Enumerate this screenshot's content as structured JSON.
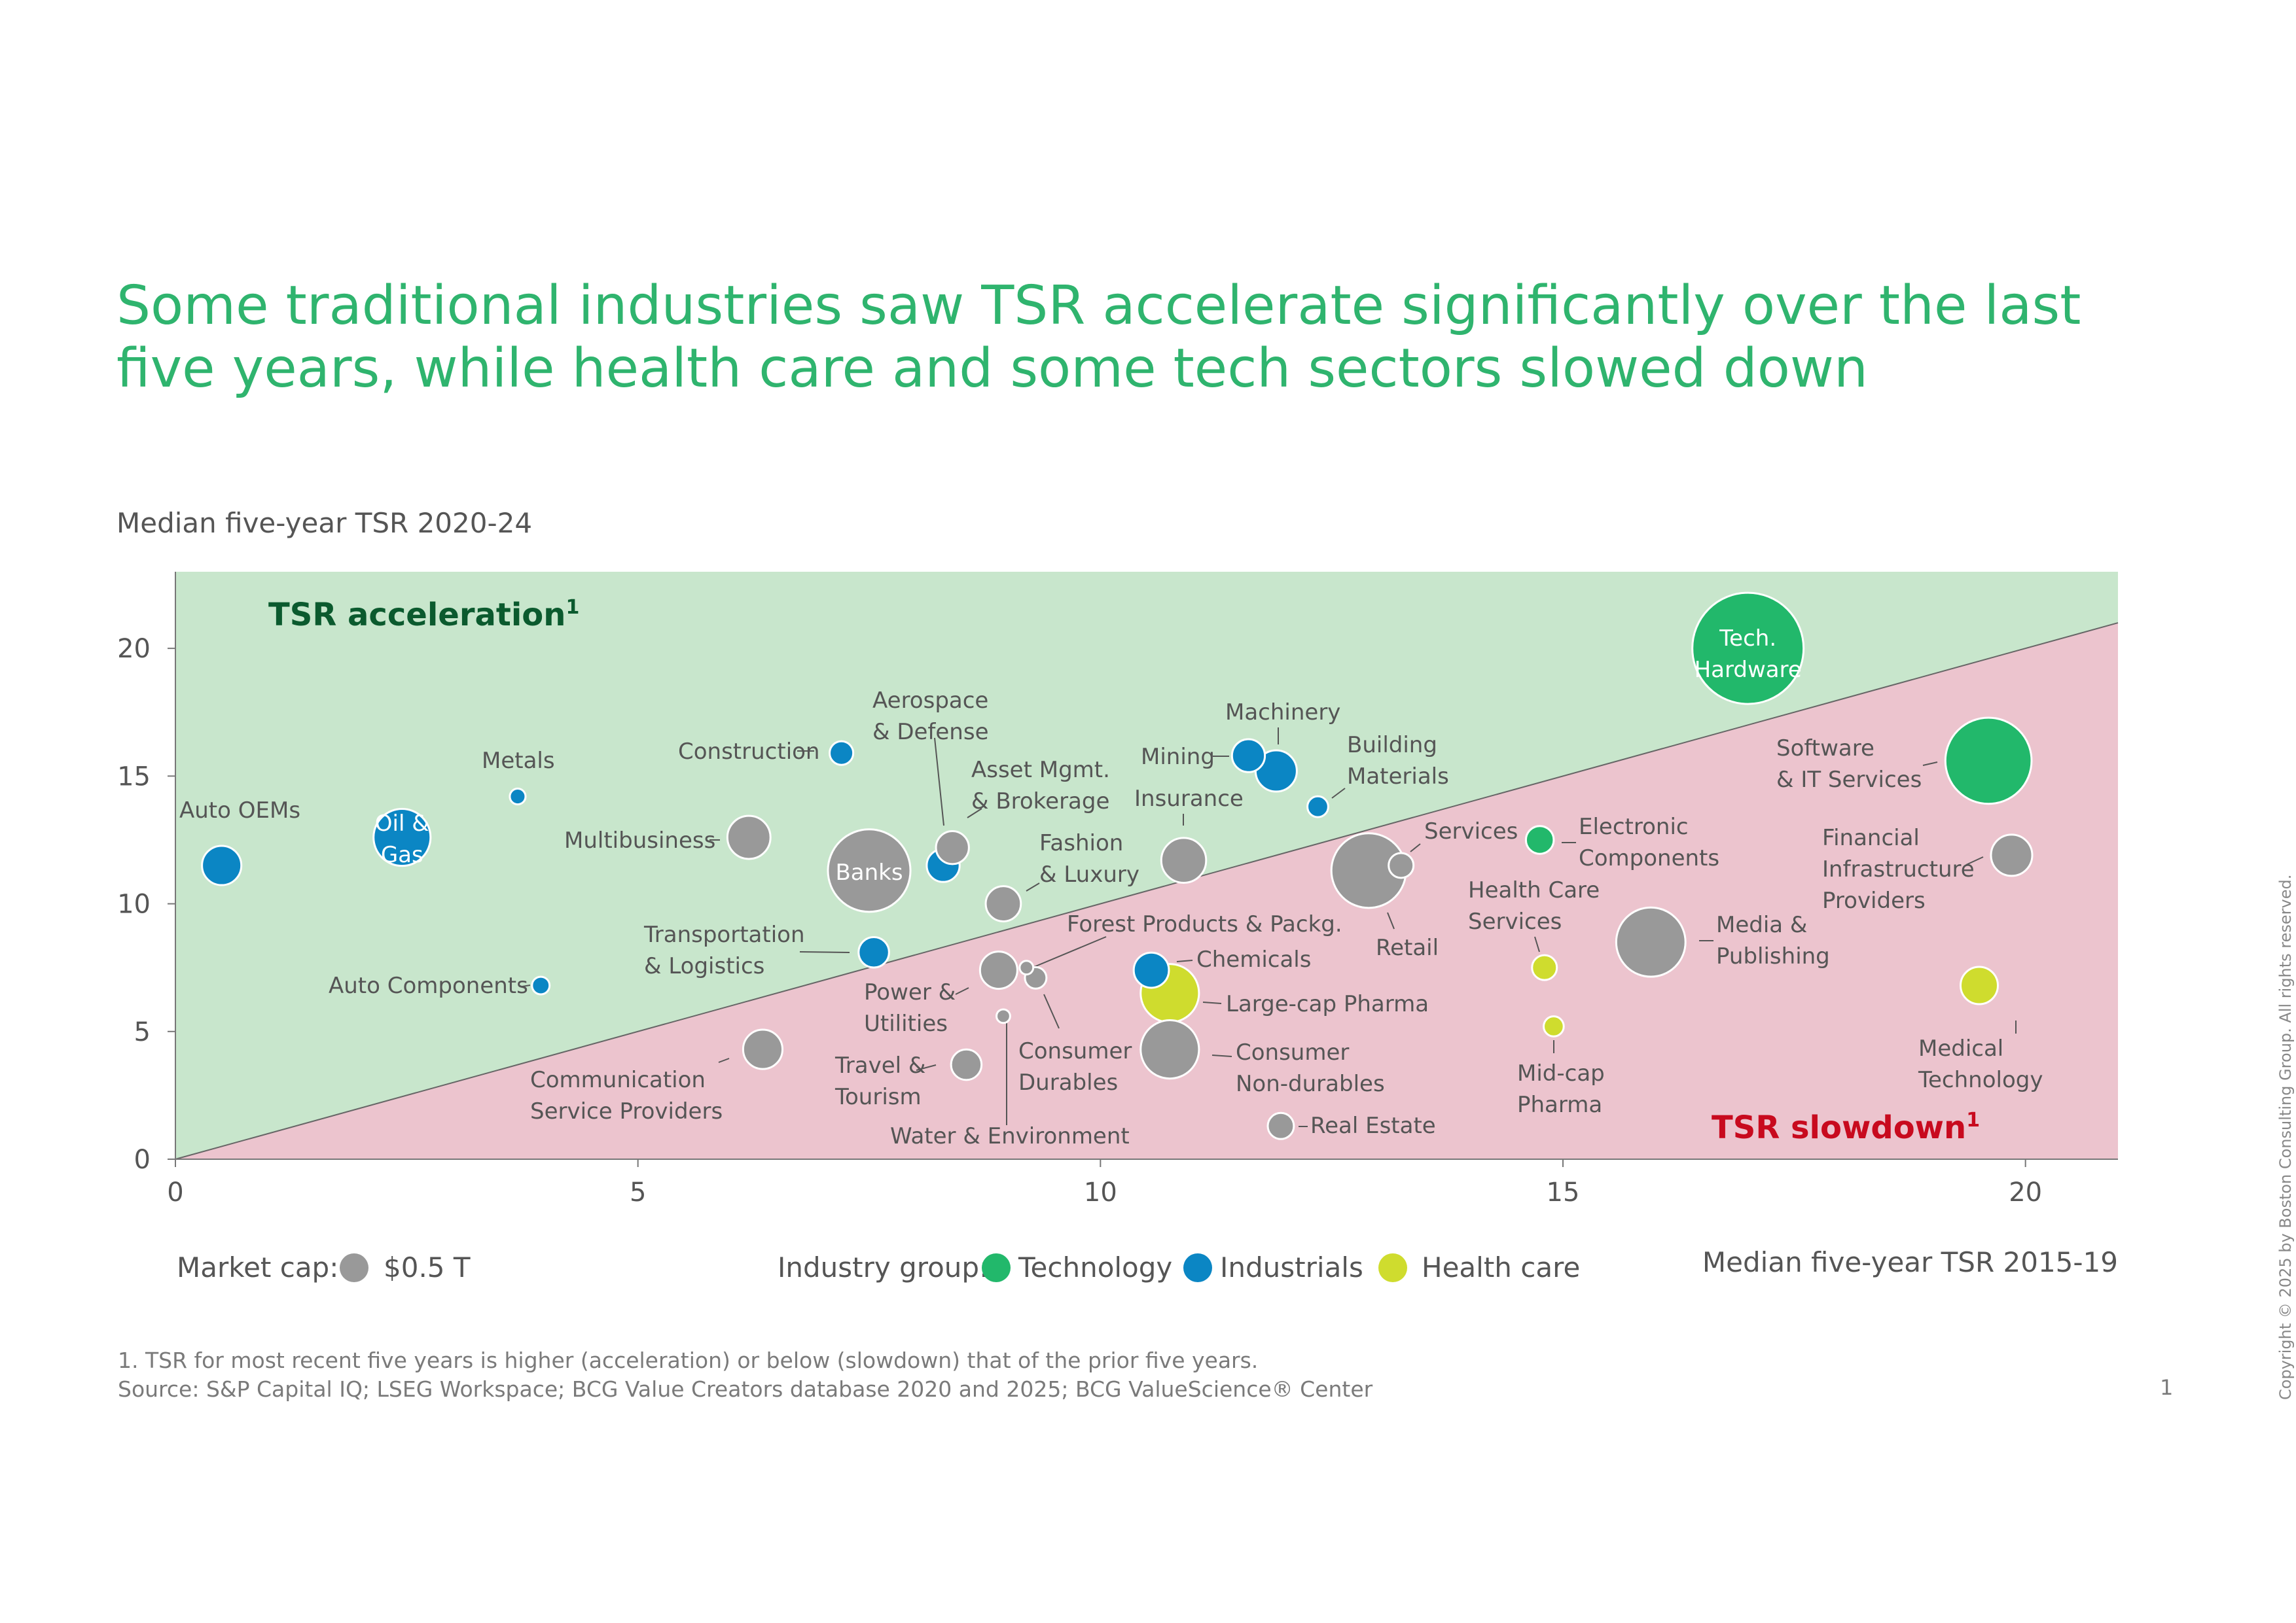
{
  "title": "Some traditional industries saw TSR accelerate significantly over the last five years, while health care and some tech sectors slowed down",
  "footnote_1": "1. TSR for most recent five years is higher (acceleration) or below (slowdown) that of the prior five years.",
  "source": "Source: S&P Capital IQ; LSEG Workspace; BCG Value Creators database 2020 and 2025; BCG ValueScience® Center",
  "page_number": "1",
  "copyright": "Copyright © 2025 by Boston Consulting Group.  All rights reserved.",
  "colors": {
    "title": "#2fb46e",
    "acceleration_bg": "#c8e6cc",
    "slowdown_bg": "#ecc4ce",
    "technology": "#22b86b",
    "industrials": "#0b86c4",
    "health_care": "#cfdc2e",
    "other": "#999999",
    "acceleration_text": "#0b5a2e",
    "slowdown_text": "#c80a1e"
  },
  "chart_data": {
    "type": "scatter",
    "variant": "bubble",
    "xlabel": "Median five-year TSR 2015-19",
    "ylabel": "Median five-year TSR 2020-24",
    "xlim": [
      0,
      21
    ],
    "ylim": [
      0,
      23
    ],
    "x_ticks": [
      0,
      5,
      10,
      15,
      20
    ],
    "y_ticks": [
      0,
      5,
      10,
      15,
      20
    ],
    "regions": [
      {
        "name": "TSR acceleration",
        "superscript": "1"
      },
      {
        "name": "TSR slowdown",
        "superscript": "1"
      }
    ],
    "legend": {
      "market_cap_label": "Market cap:",
      "market_cap_value": "$0.5 T",
      "industry_group_label": "Industry group:",
      "groups": [
        {
          "name": "Technology",
          "key": "technology"
        },
        {
          "name": "Industrials",
          "key": "industrials"
        },
        {
          "name": "Health care",
          "key": "health_care"
        }
      ]
    },
    "points": [
      {
        "name": "Tech. Hardware",
        "x": 17.0,
        "y": 20.0,
        "cap": 4.0,
        "group": "technology"
      },
      {
        "name": "Software & IT Services",
        "x": 19.6,
        "y": 15.6,
        "cap": 2.4,
        "group": "technology"
      },
      {
        "name": "Electronic Components",
        "x": 14.75,
        "y": 12.5,
        "cap": 0.25,
        "group": "technology"
      },
      {
        "name": "Financial Infrastructure Providers",
        "x": 19.85,
        "y": 11.9,
        "cap": 0.55,
        "group": "other"
      },
      {
        "name": "Media & Publishing",
        "x": 15.95,
        "y": 8.5,
        "cap": 1.55,
        "group": "other"
      },
      {
        "name": "Medical Technology",
        "x": 19.5,
        "y": 6.8,
        "cap": 0.45,
        "group": "health_care"
      },
      {
        "name": "Health Care Services",
        "x": 14.8,
        "y": 7.5,
        "cap": 0.2,
        "group": "health_care"
      },
      {
        "name": "Mid-cap Pharma",
        "x": 14.9,
        "y": 5.2,
        "cap": 0.13,
        "group": "health_care"
      },
      {
        "name": "Large-cap Pharma",
        "x": 10.75,
        "y": 6.5,
        "cap": 1.1,
        "group": "health_care"
      },
      {
        "name": "Retail",
        "x": 12.9,
        "y": 11.3,
        "cap": 1.8,
        "group": "other"
      },
      {
        "name": "Services",
        "x": 13.25,
        "y": 11.5,
        "cap": 0.2,
        "group": "other"
      },
      {
        "name": "Building Materials",
        "x": 12.35,
        "y": 13.8,
        "cap": 0.14,
        "group": "industrials"
      },
      {
        "name": "Machinery",
        "x": 11.9,
        "y": 15.2,
        "cap": 0.55,
        "group": "industrials"
      },
      {
        "name": "Mining",
        "x": 11.6,
        "y": 15.8,
        "cap": 0.35,
        "group": "industrials"
      },
      {
        "name": "Insurance",
        "x": 10.9,
        "y": 11.7,
        "cap": 0.65,
        "group": "other"
      },
      {
        "name": "Chemicals",
        "x": 10.55,
        "y": 7.4,
        "cap": 0.4,
        "group": "industrials"
      },
      {
        "name": "Consumer Non-durables",
        "x": 10.75,
        "y": 4.3,
        "cap": 1.1,
        "group": "other"
      },
      {
        "name": "Real Estate",
        "x": 11.95,
        "y": 1.3,
        "cap": 0.22,
        "group": "other"
      },
      {
        "name": "Banks",
        "x": 7.5,
        "y": 11.3,
        "cap": 2.2,
        "group": "other"
      },
      {
        "name": "Asset Mgmt. & Brokerage",
        "x": 8.3,
        "y": 11.5,
        "cap": 0.35,
        "group": "industrials"
      },
      {
        "name": "Aerospace & Defense",
        "x": 8.4,
        "y": 12.2,
        "cap": 0.35,
        "group": "other"
      },
      {
        "name": "Fashion & Luxury",
        "x": 8.95,
        "y": 10.0,
        "cap": 0.4,
        "group": "other"
      },
      {
        "name": "Construction",
        "x": 7.2,
        "y": 15.9,
        "cap": 0.18,
        "group": "industrials"
      },
      {
        "name": "Transportation & Logistics",
        "x": 7.55,
        "y": 8.1,
        "cap": 0.3,
        "group": "industrials"
      },
      {
        "name": "Power & Utilities",
        "x": 8.9,
        "y": 7.4,
        "cap": 0.45,
        "group": "other"
      },
      {
        "name": "Forest Products & Packg.",
        "x": 9.2,
        "y": 7.5,
        "cap": 0.06,
        "group": "other"
      },
      {
        "name": "Consumer Durables",
        "x": 9.3,
        "y": 7.1,
        "cap": 0.15,
        "group": "other"
      },
      {
        "name": "Water & Environment",
        "x": 8.95,
        "y": 5.6,
        "cap": 0.06,
        "group": "other"
      },
      {
        "name": "Travel & Tourism",
        "x": 8.55,
        "y": 3.7,
        "cap": 0.3,
        "group": "other"
      },
      {
        "name": "Communication Service Providers",
        "x": 6.35,
        "y": 4.3,
        "cap": 0.5,
        "group": "other"
      },
      {
        "name": "Multibusiness",
        "x": 6.2,
        "y": 12.6,
        "cap": 0.6,
        "group": "other"
      },
      {
        "name": "Metals",
        "x": 3.7,
        "y": 14.2,
        "cap": 0.08,
        "group": "industrials"
      },
      {
        "name": "Oil & Gas",
        "x": 2.45,
        "y": 12.6,
        "cap": 1.05,
        "group": "industrials"
      },
      {
        "name": "Auto OEMs",
        "x": 0.5,
        "y": 11.5,
        "cap": 0.5,
        "group": "industrials"
      },
      {
        "name": "Auto Components",
        "x": 3.95,
        "y": 6.8,
        "cap": 0.1,
        "group": "industrials"
      }
    ]
  }
}
